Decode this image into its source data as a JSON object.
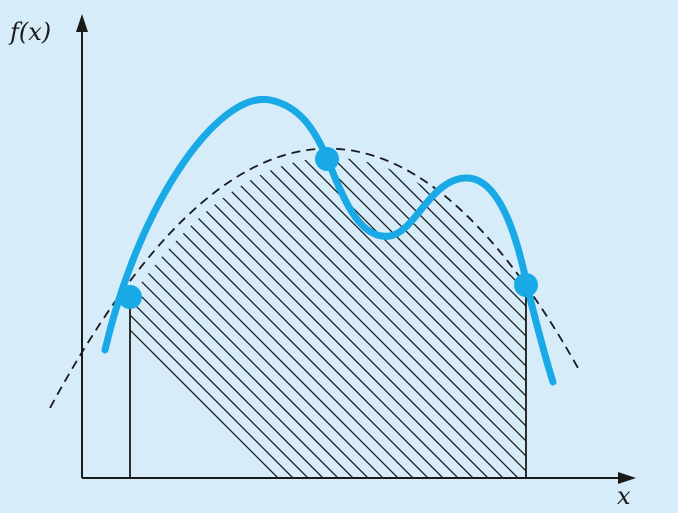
{
  "labels": {
    "y_axis": "f(x)",
    "x_axis": "x"
  },
  "colors": {
    "background": "#d6ecf8",
    "curve": "#19a9e6",
    "ink": "#1a1a1a"
  }
}
